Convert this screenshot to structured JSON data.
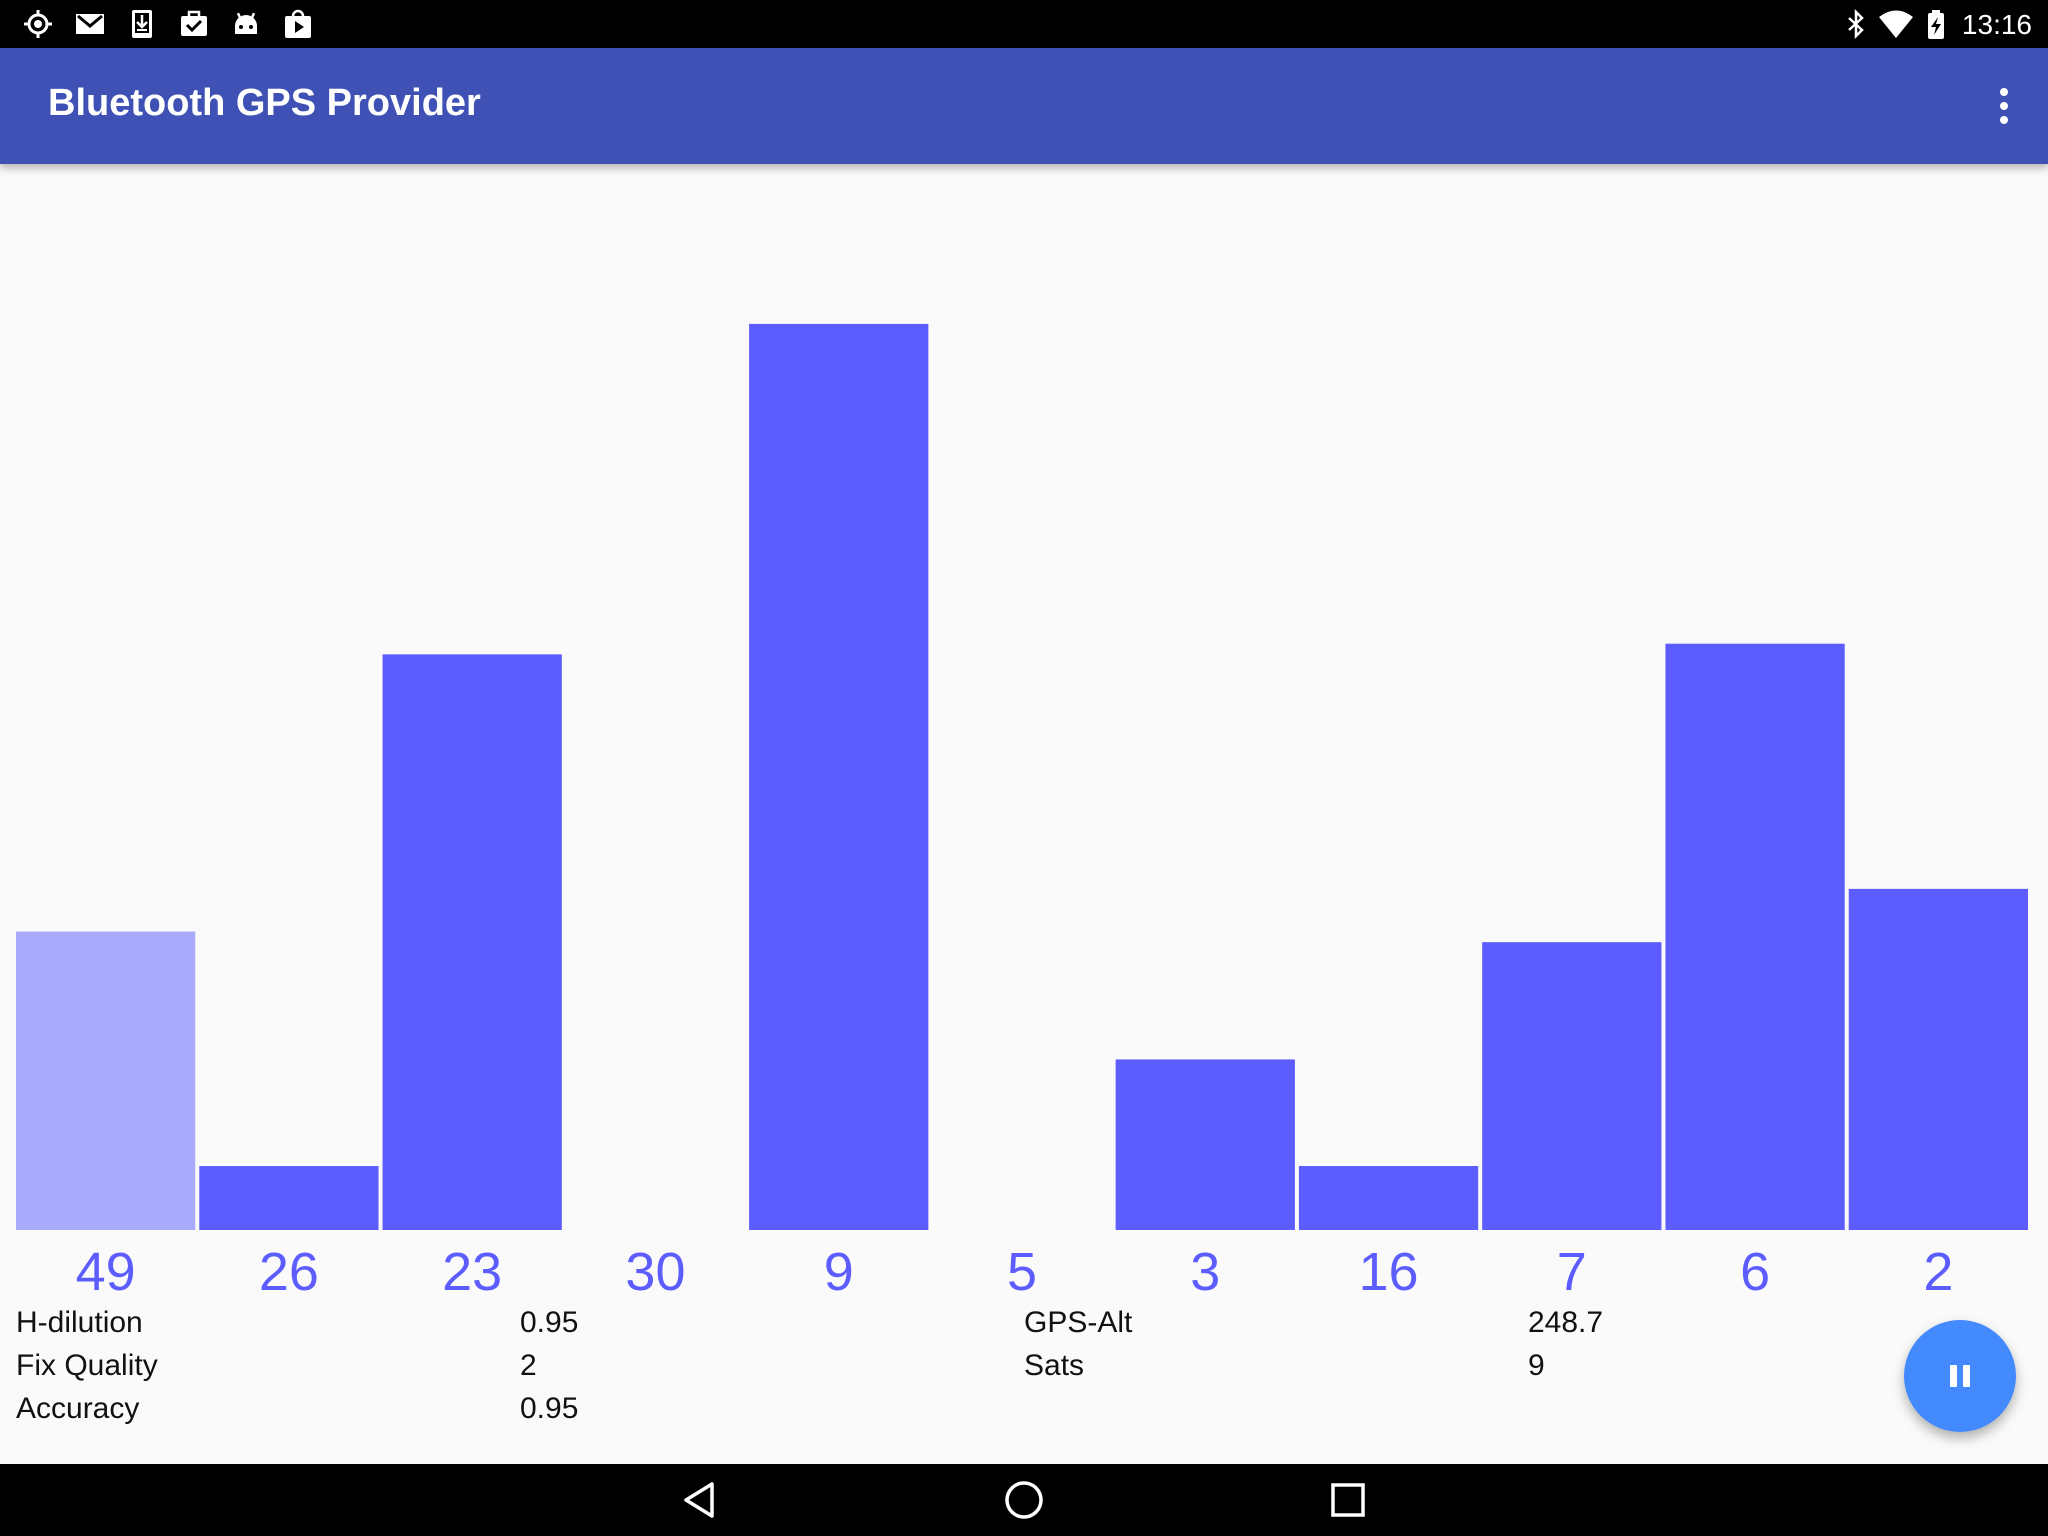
{
  "status_bar": {
    "time": "13:16",
    "left_icons": [
      "location-icon",
      "gmail-icon",
      "download-icon",
      "task-icon",
      "android-icon",
      "play-store-icon"
    ],
    "right_icons": [
      "bluetooth-icon",
      "wifi-icon",
      "battery-icon"
    ]
  },
  "app_bar": {
    "title": "Bluetooth GPS Provider",
    "color": "#3f51b5",
    "overflow_icon": "more-vert-icon"
  },
  "chart_data": {
    "type": "bar",
    "categories": [
      "49",
      "26",
      "23",
      "30",
      "9",
      "5",
      "3",
      "16",
      "7",
      "6",
      "2"
    ],
    "values": [
      28,
      6,
      54,
      0,
      85,
      0,
      16,
      6,
      27,
      55,
      32
    ],
    "highlight": [
      false,
      true,
      true,
      true,
      true,
      true,
      true,
      true,
      true,
      true,
      true
    ],
    "ylim": [
      0,
      100
    ],
    "bar_color": "#5c5cff",
    "bar_color_faded": "#aaaafc",
    "label_color": "#5c5cff"
  },
  "info": {
    "left": [
      {
        "label": "H-dilution",
        "value": "0.95"
      },
      {
        "label": "Fix Quality",
        "value": "2"
      },
      {
        "label": "Accuracy",
        "value": "0.95"
      }
    ],
    "right": [
      {
        "label": "GPS-Alt",
        "value": "248.7"
      },
      {
        "label": "Sats",
        "value": "9"
      }
    ]
  },
  "fab": {
    "icon": "pause-icon",
    "color": "#448aff"
  },
  "nav_bar": {
    "icons": [
      "back-icon",
      "home-icon",
      "recents-icon"
    ]
  }
}
